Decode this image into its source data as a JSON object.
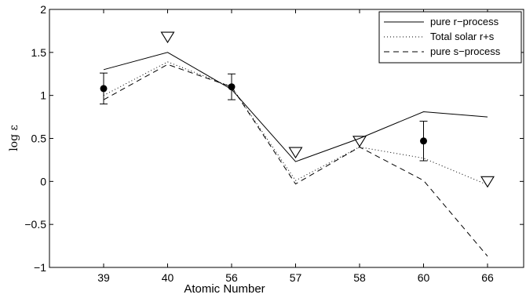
{
  "chart_data": {
    "type": "line",
    "title": "",
    "xlabel": "Atomic Number",
    "ylabel": "log ε",
    "categories": [
      "39",
      "40",
      "56",
      "57",
      "58",
      "60",
      "66"
    ],
    "ylim": [
      -1,
      2
    ],
    "yticks": [
      "−1",
      "−0.5",
      "0",
      "0.5",
      "1",
      "1.5",
      "2"
    ],
    "ytick_values": [
      -1,
      -0.5,
      0,
      0.5,
      1,
      1.5,
      2
    ],
    "grid": false,
    "legend_position": "top-right",
    "series": [
      {
        "name": "pure r−process",
        "style": "solid",
        "color": "#000000",
        "values": [
          1.3,
          1.5,
          1.07,
          0.23,
          0.5,
          0.81,
          0.75
        ]
      },
      {
        "name": "Total solar r+s",
        "style": "dotted",
        "color": "#000000",
        "values": [
          1.0,
          1.39,
          1.1,
          0.01,
          0.4,
          0.27,
          -0.04
        ]
      },
      {
        "name": "pure s−process",
        "style": "dashed",
        "color": "#000000",
        "values": [
          0.95,
          1.36,
          1.1,
          -0.03,
          0.4,
          0.01,
          -0.87
        ]
      }
    ],
    "measurements": [
      {
        "category": "39",
        "value": 1.08,
        "error": 0.18
      },
      {
        "category": "56",
        "value": 1.1,
        "error": 0.15
      },
      {
        "category": "60",
        "value": 0.47,
        "error": 0.23
      }
    ],
    "upper_limits": [
      {
        "category": "40",
        "value": 1.68
      },
      {
        "category": "57",
        "value": 0.34
      },
      {
        "category": "58",
        "value": 0.47
      },
      {
        "category": "66",
        "value": 0.0
      }
    ]
  }
}
